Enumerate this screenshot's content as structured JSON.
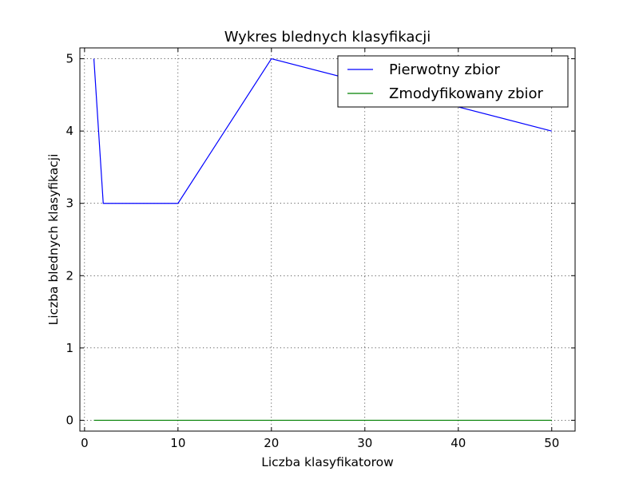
{
  "chart_data": {
    "type": "line",
    "title": "Wykres blednych klasyfikacji",
    "xlabel": "Liczba klasyfikatorow",
    "ylabel": "Liczba blednych klasyfikacji",
    "xlim": [
      -0.5,
      52.5
    ],
    "ylim": [
      -0.15,
      5.15
    ],
    "xticks": [
      0,
      10,
      20,
      30,
      40,
      50
    ],
    "yticks": [
      0,
      1,
      2,
      3,
      4,
      5
    ],
    "grid": true,
    "legend_position": "top-right",
    "series": [
      {
        "name": "Pierwotny zbior",
        "color": "#0000ff",
        "x": [
          1,
          2,
          10,
          20,
          50
        ],
        "y": [
          5,
          3,
          3,
          5,
          4
        ]
      },
      {
        "name": "Zmodyfikowany zbior",
        "color": "#008000",
        "x": [
          1,
          2,
          10,
          20,
          50
        ],
        "y": [
          0,
          0,
          0,
          0,
          0
        ]
      }
    ]
  }
}
